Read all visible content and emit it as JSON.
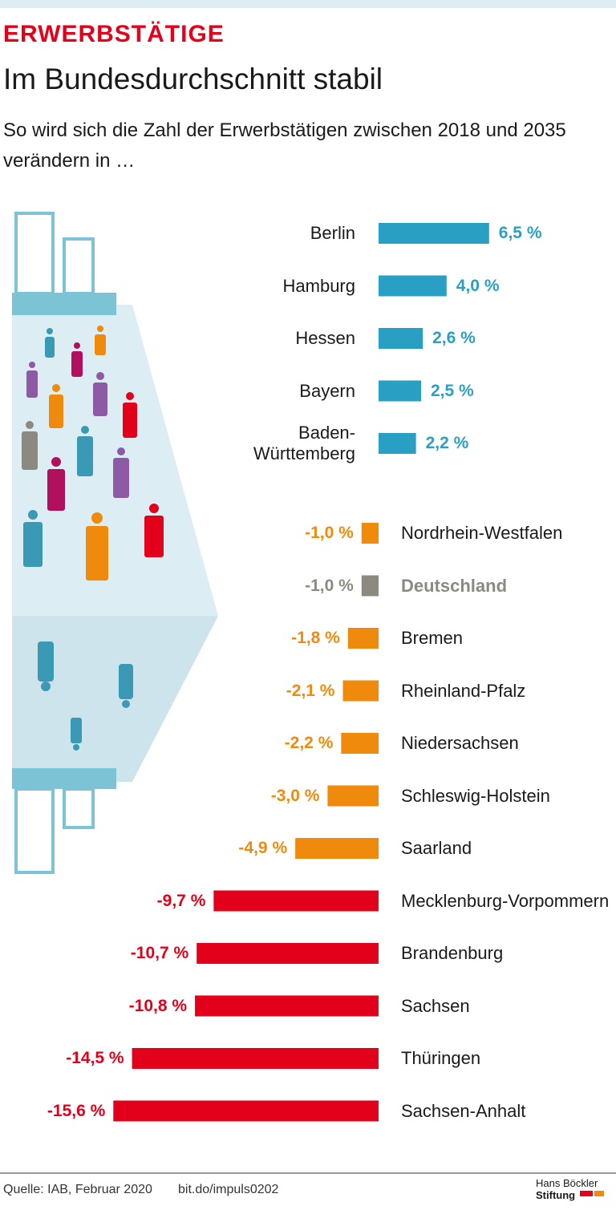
{
  "chart_data": {
    "type": "bar",
    "kicker": "ERWERBSTÄTIGE",
    "title": "Im Bundesdurchschnitt stabil",
    "subtitle": "So wird sich die Zahl der Erwerbstätigen zwischen 2018 und 2035 verändern in …",
    "categories": [
      "Berlin",
      "Hamburg",
      "Hessen",
      "Bayern",
      "Baden-Württemberg",
      "Nordrhein-Westfalen",
      "Deutschland",
      "Bremen",
      "Rheinland-Pfalz",
      "Niedersachsen",
      "Schleswig-Holstein",
      "Saarland",
      "Mecklenburg-Vorpommern",
      "Brandenburg",
      "Sachsen",
      "Thüringen",
      "Sachsen-Anhalt"
    ],
    "values": [
      6.5,
      4.0,
      2.6,
      2.5,
      2.2,
      -1.0,
      -1.0,
      -1.8,
      -2.1,
      -2.2,
      -3.0,
      -4.9,
      -9.7,
      -10.7,
      -10.8,
      -14.5,
      -15.6
    ],
    "value_labels": [
      "6,5 %",
      "4,0 %",
      "2,6 %",
      "2,5 %",
      "2,2 %",
      "-1,0 %",
      "-1,0 %",
      "-1,8 %",
      "-2,1 %",
      "-2,2 %",
      "-3,0 %",
      "-4,9 %",
      "-9,7 %",
      "-10,7 %",
      "-10,8 %",
      "-14,5 %",
      "-15,6 %"
    ],
    "colors": [
      "#2a9fc4",
      "#2a9fc4",
      "#2a9fc4",
      "#2a9fc4",
      "#2a9fc4",
      "#f08a0c",
      "#8c8a80",
      "#f08a0c",
      "#f08a0c",
      "#f08a0c",
      "#f08a0c",
      "#f08a0c",
      "#e3001b",
      "#e3001b",
      "#e3001b",
      "#e3001b",
      "#e3001b"
    ],
    "emphasis": [
      6
    ],
    "source": "Quelle: IAB, Februar 2020",
    "link": "bit.do/impuls0202",
    "logo": [
      "Hans Böckler",
      "Stiftung"
    ]
  }
}
